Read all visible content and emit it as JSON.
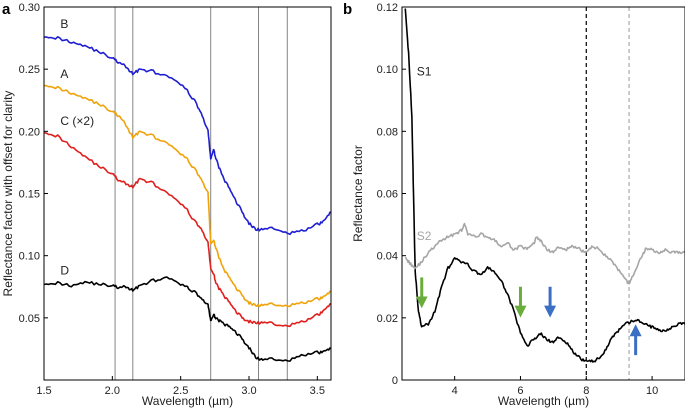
{
  "chart_data": [
    {
      "panel": "a",
      "type": "line",
      "title": "",
      "xlabel": "Wavelength (µm)",
      "ylabel": "Reflectance factor with offset for clarity",
      "xlim": [
        1.5,
        3.6
      ],
      "ylim": [
        0.0,
        0.3
      ],
      "xticks": [
        1.5,
        2.0,
        2.5,
        3.0,
        3.5
      ],
      "xtick_labels": [
        "1.5",
        "2.0",
        "2.5",
        "3.0",
        "3.5"
      ],
      "yticks": [
        0.05,
        0.1,
        0.15,
        0.2,
        0.25,
        0.3
      ],
      "ytick_labels": [
        "0.05",
        "0.10",
        "0.15",
        "0.20",
        "0.25",
        "0.30"
      ],
      "grid": false,
      "legend": "none",
      "vertical_lines": [
        2.02,
        2.15,
        2.72,
        3.07,
        3.28
      ],
      "series": [
        {
          "name": "B",
          "label": "B",
          "color": "#1f1fd1",
          "x": [
            1.5,
            1.6,
            1.7,
            1.8,
            1.9,
            2.0,
            2.05,
            2.1,
            2.15,
            2.2,
            2.3,
            2.4,
            2.5,
            2.55,
            2.6,
            2.65,
            2.7,
            2.72,
            2.74,
            2.76,
            2.8,
            2.85,
            2.9,
            2.95,
            3.0,
            3.05,
            3.1,
            3.2,
            3.3,
            3.4,
            3.5,
            3.55,
            3.6
          ],
          "y": [
            0.277,
            0.275,
            0.272,
            0.269,
            0.264,
            0.259,
            0.255,
            0.252,
            0.246,
            0.25,
            0.248,
            0.244,
            0.238,
            0.232,
            0.225,
            0.215,
            0.2,
            0.178,
            0.185,
            0.178,
            0.165,
            0.155,
            0.145,
            0.135,
            0.126,
            0.121,
            0.121,
            0.122,
            0.118,
            0.12,
            0.125,
            0.128,
            0.135
          ]
        },
        {
          "name": "A",
          "label": "A",
          "color": "#f0a30a",
          "x": [
            1.5,
            1.6,
            1.7,
            1.8,
            1.9,
            2.0,
            2.05,
            2.1,
            2.15,
            2.2,
            2.3,
            2.4,
            2.5,
            2.55,
            2.6,
            2.65,
            2.7,
            2.72,
            2.74,
            2.76,
            2.8,
            2.85,
            2.9,
            2.95,
            3.0,
            3.05,
            3.1,
            3.2,
            3.3,
            3.4,
            3.5,
            3.55,
            3.6
          ],
          "y": [
            0.238,
            0.235,
            0.231,
            0.227,
            0.222,
            0.216,
            0.212,
            0.205,
            0.195,
            0.2,
            0.196,
            0.19,
            0.182,
            0.177,
            0.17,
            0.162,
            0.15,
            0.11,
            0.112,
            0.106,
            0.092,
            0.083,
            0.075,
            0.068,
            0.062,
            0.06,
            0.06,
            0.061,
            0.06,
            0.062,
            0.065,
            0.067,
            0.071
          ]
        },
        {
          "name": "C (×2)",
          "label": "C (×2)",
          "color": "#e01f1f",
          "x": [
            1.5,
            1.6,
            1.7,
            1.8,
            1.9,
            2.0,
            2.05,
            2.1,
            2.15,
            2.2,
            2.3,
            2.4,
            2.5,
            2.55,
            2.6,
            2.65,
            2.7,
            2.72,
            2.74,
            2.76,
            2.8,
            2.85,
            2.9,
            2.95,
            3.0,
            3.05,
            3.1,
            3.2,
            3.3,
            3.4,
            3.5,
            3.55,
            3.6
          ],
          "y": [
            0.2,
            0.196,
            0.188,
            0.18,
            0.172,
            0.166,
            0.16,
            0.158,
            0.155,
            0.162,
            0.158,
            0.15,
            0.142,
            0.136,
            0.128,
            0.122,
            0.11,
            0.09,
            0.085,
            0.078,
            0.07,
            0.063,
            0.056,
            0.05,
            0.047,
            0.046,
            0.046,
            0.045,
            0.044,
            0.047,
            0.052,
            0.056,
            0.061
          ]
        },
        {
          "name": "D",
          "label": "D",
          "color": "#000000",
          "x": [
            1.5,
            1.6,
            1.7,
            1.8,
            1.9,
            2.0,
            2.05,
            2.1,
            2.15,
            2.2,
            2.3,
            2.4,
            2.5,
            2.55,
            2.6,
            2.65,
            2.7,
            2.72,
            2.74,
            2.76,
            2.8,
            2.85,
            2.9,
            2.95,
            3.0,
            3.05,
            3.1,
            3.2,
            3.3,
            3.4,
            3.5,
            3.55,
            3.6
          ],
          "y": [
            0.078,
            0.078,
            0.076,
            0.079,
            0.077,
            0.076,
            0.074,
            0.075,
            0.072,
            0.076,
            0.08,
            0.082,
            0.077,
            0.074,
            0.071,
            0.066,
            0.06,
            0.048,
            0.052,
            0.05,
            0.046,
            0.043,
            0.039,
            0.033,
            0.026,
            0.018,
            0.016,
            0.017,
            0.016,
            0.02,
            0.022,
            0.023,
            0.025
          ]
        }
      ]
    },
    {
      "panel": "b",
      "type": "line",
      "title": "",
      "xlabel": "Wavelength (µm)",
      "ylabel": "Reflectance factor",
      "xlim": [
        2.4,
        11.0
      ],
      "ylim": [
        0.0,
        0.12
      ],
      "xticks": [
        4,
        6,
        8,
        10
      ],
      "xtick_labels": [
        "4",
        "6",
        "8",
        "10"
      ],
      "yticks": [
        0,
        0.02,
        0.04,
        0.06,
        0.08,
        0.1,
        0.12
      ],
      "ytick_labels": [
        "0",
        "0.02",
        "0.04",
        "0.06",
        "0.08",
        "0.10",
        "0.12"
      ],
      "grid": false,
      "legend": "none",
      "vertical_lines": [
        {
          "x": 8.0,
          "style": "dashed",
          "color": "#000000"
        },
        {
          "x": 9.3,
          "style": "dashed",
          "color": "#aaaaaa"
        }
      ],
      "arrows": [
        {
          "x": 3.0,
          "y_tail": 0.033,
          "y_head": 0.025,
          "direction": "down",
          "color": "#6aad3d"
        },
        {
          "x": 6.0,
          "y_tail": 0.03,
          "y_head": 0.022,
          "direction": "down",
          "color": "#6aad3d"
        },
        {
          "x": 6.9,
          "y_tail": 0.03,
          "y_head": 0.022,
          "direction": "down",
          "color": "#3a6fc4"
        },
        {
          "x": 9.5,
          "y_tail": 0.008,
          "y_head": 0.016,
          "direction": "up",
          "color": "#3a6fc4"
        }
      ],
      "series": [
        {
          "name": "S1",
          "label": "S1",
          "color": "#000000",
          "x": [
            2.5,
            2.6,
            2.7,
            2.75,
            2.8,
            2.9,
            3.0,
            3.2,
            3.4,
            3.6,
            3.8,
            4.0,
            4.2,
            4.4,
            4.6,
            4.8,
            5.0,
            5.2,
            5.4,
            5.6,
            5.8,
            6.0,
            6.2,
            6.4,
            6.6,
            6.8,
            7.0,
            7.2,
            7.4,
            7.6,
            7.8,
            8.0,
            8.2,
            8.4,
            8.6,
            8.8,
            9.0,
            9.2,
            9.4,
            9.6,
            9.8,
            10.0,
            10.2,
            10.4,
            10.6,
            10.8,
            11.0
          ],
          "y": [
            0.12,
            0.105,
            0.085,
            0.06,
            0.035,
            0.022,
            0.017,
            0.018,
            0.022,
            0.03,
            0.036,
            0.039,
            0.038,
            0.037,
            0.035,
            0.034,
            0.036,
            0.035,
            0.032,
            0.028,
            0.022,
            0.015,
            0.011,
            0.013,
            0.015,
            0.013,
            0.012,
            0.014,
            0.012,
            0.009,
            0.007,
            0.006,
            0.006,
            0.007,
            0.01,
            0.014,
            0.016,
            0.018,
            0.019,
            0.019,
            0.018,
            0.017,
            0.016,
            0.016,
            0.017,
            0.018,
            0.018
          ]
        },
        {
          "name": "S2",
          "label": "S2",
          "color": "#a6a6a6",
          "x": [
            2.5,
            2.6,
            2.7,
            2.8,
            3.0,
            3.2,
            3.4,
            3.6,
            3.8,
            4.0,
            4.2,
            4.3,
            4.4,
            4.6,
            4.8,
            5.0,
            5.2,
            5.4,
            5.6,
            5.8,
            6.0,
            6.2,
            6.4,
            6.5,
            6.6,
            6.8,
            7.0,
            7.2,
            7.4,
            7.6,
            7.8,
            8.0,
            8.2,
            8.4,
            8.6,
            8.8,
            9.0,
            9.2,
            9.3,
            9.4,
            9.6,
            9.8,
            10.0,
            10.2,
            10.4,
            10.6,
            10.8,
            11.0
          ],
          "y": [
            0.04,
            0.038,
            0.037,
            0.036,
            0.038,
            0.041,
            0.043,
            0.045,
            0.046,
            0.047,
            0.048,
            0.05,
            0.047,
            0.046,
            0.047,
            0.046,
            0.045,
            0.043,
            0.044,
            0.042,
            0.043,
            0.042,
            0.044,
            0.046,
            0.045,
            0.042,
            0.041,
            0.043,
            0.042,
            0.043,
            0.042,
            0.041,
            0.043,
            0.042,
            0.04,
            0.038,
            0.035,
            0.032,
            0.031,
            0.033,
            0.038,
            0.042,
            0.042,
            0.041,
            0.042,
            0.041,
            0.041,
            0.041
          ]
        }
      ]
    }
  ],
  "panels": {
    "a": {
      "letter": "a"
    },
    "b": {
      "letter": "b"
    }
  }
}
